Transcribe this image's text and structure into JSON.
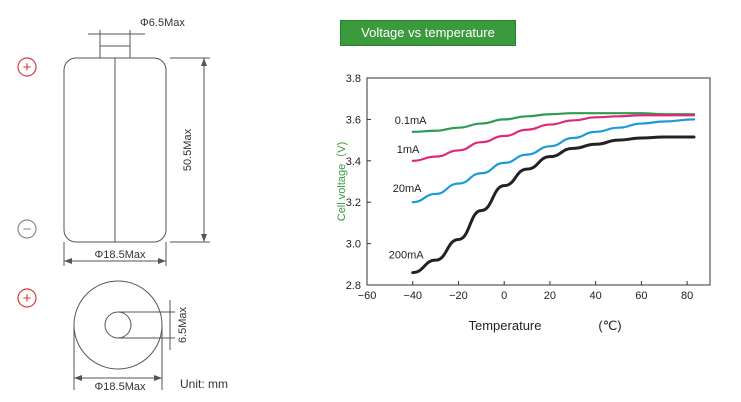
{
  "drawing": {
    "top_diameter_label": "Φ6.5Max",
    "height_label": "50.5Max",
    "body_diameter_label": "Φ18.5Max",
    "end_diameter_label": "Φ18.5Max",
    "terminal_diameter_label": "6.5Max",
    "unit_label": "Unit: mm",
    "plus_symbol": "+",
    "minus_symbol": "−",
    "polarity_color": "#d9383a",
    "minus_color": "#888888"
  },
  "chart_data": {
    "type": "line",
    "title": "Voltage vs temperature",
    "title_bg_color": "#3a9a3c",
    "xlabel": "Temperature",
    "xlabel_unit": "(℃)",
    "ylabel": "Cell voltage（V)",
    "ylabel_color": "#3a9a3c",
    "xlim": [
      -60,
      90
    ],
    "ylim": [
      2.8,
      3.8
    ],
    "xticks": [
      -60,
      -40,
      -20,
      0,
      20,
      40,
      60,
      80
    ],
    "yticks": [
      2.8,
      3.0,
      3.2,
      3.4,
      3.6,
      3.8
    ],
    "ytick_labels": [
      "2.8",
      "3.0",
      "3.2",
      "3.4",
      "3.6",
      "3.8"
    ],
    "grid": false,
    "series": [
      {
        "name": "0.1mA",
        "color": "#2e9a52",
        "x": [
          -40,
          -30,
          -20,
          -10,
          0,
          10,
          20,
          30,
          40,
          50,
          60,
          70,
          83
        ],
        "y": [
          3.54,
          3.545,
          3.56,
          3.58,
          3.6,
          3.615,
          3.625,
          3.63,
          3.63,
          3.63,
          3.63,
          3.625,
          3.625
        ]
      },
      {
        "name": "1mA",
        "color": "#e0287a",
        "x": [
          -40,
          -30,
          -20,
          -10,
          0,
          10,
          20,
          30,
          40,
          50,
          60,
          70,
          83
        ],
        "y": [
          3.4,
          3.42,
          3.45,
          3.49,
          3.52,
          3.55,
          3.575,
          3.595,
          3.61,
          3.615,
          3.62,
          3.62,
          3.62
        ]
      },
      {
        "name": "20mA",
        "color": "#1a9ad8",
        "x": [
          -40,
          -30,
          -20,
          -10,
          0,
          10,
          20,
          30,
          40,
          50,
          60,
          70,
          83
        ],
        "y": [
          3.2,
          3.24,
          3.29,
          3.34,
          3.39,
          3.43,
          3.47,
          3.51,
          3.54,
          3.56,
          3.58,
          3.59,
          3.6
        ]
      },
      {
        "name": "200mA",
        "color": "#222222",
        "x": [
          -40,
          -30,
          -20,
          -10,
          0,
          10,
          20,
          30,
          40,
          50,
          60,
          70,
          83
        ],
        "y": [
          2.86,
          2.92,
          3.02,
          3.16,
          3.28,
          3.36,
          3.42,
          3.46,
          3.48,
          3.5,
          3.51,
          3.515,
          3.515
        ]
      }
    ]
  }
}
